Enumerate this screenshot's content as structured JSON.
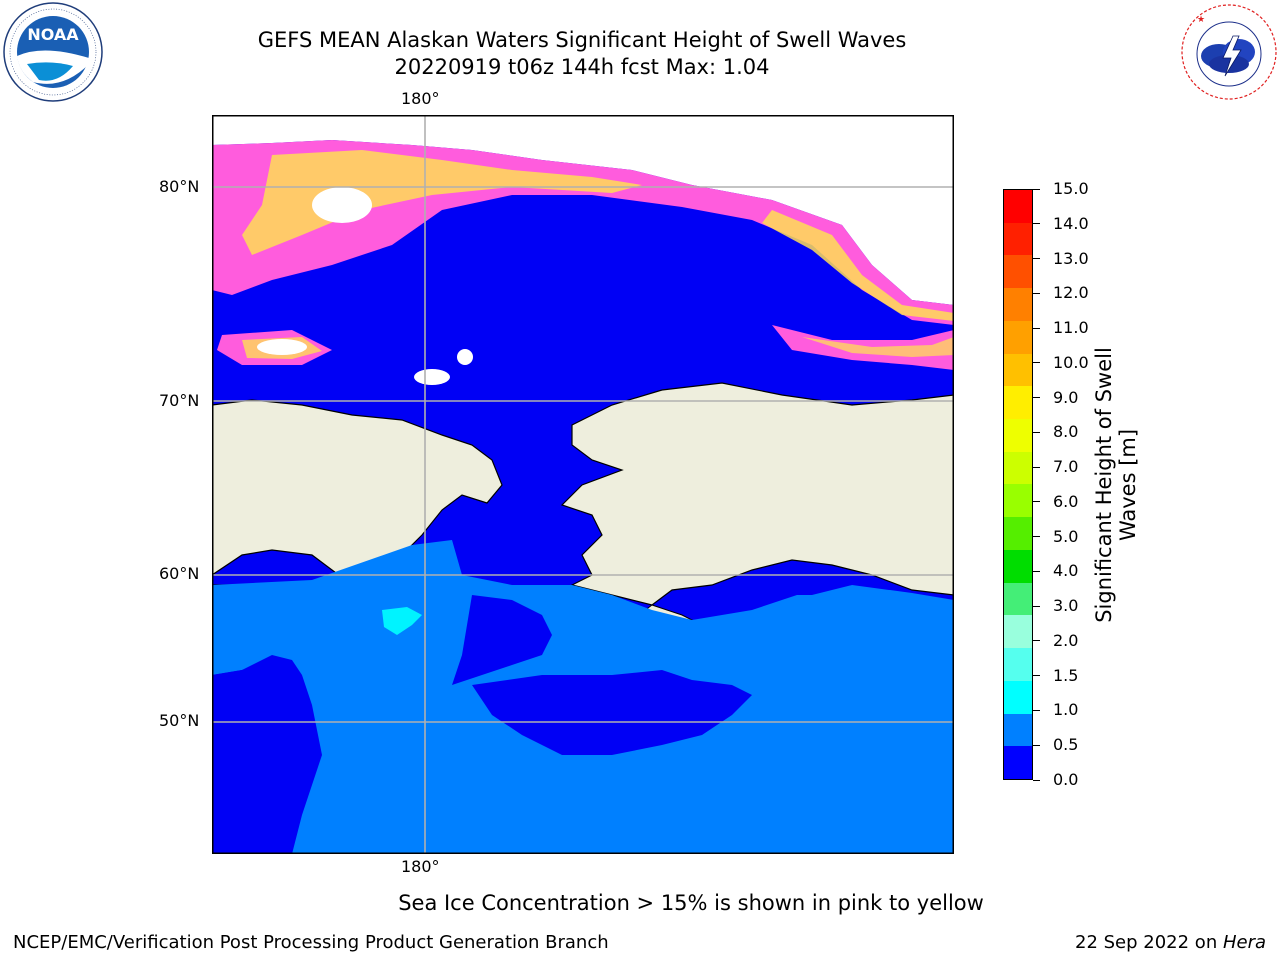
{
  "header": {
    "title_line1": "GEFS MEAN Alaskan Waters Significant Height of Swell Waves",
    "title_line2": "20220919 t06z 144h fcst   Max: 1.04"
  },
  "logos": {
    "noaa_text": "NOAA",
    "noaa_ring_text": "NATIONAL OCEANIC AND ATMOSPHERIC ADMINISTRATION · U.S. DEPARTMENT OF COMMERCE",
    "nws_ring_text": "NATIONAL WEATHER SERVICE"
  },
  "map": {
    "lon_label_top": "180°",
    "lon_label_bottom": "180°",
    "lat_labels": [
      "80°N",
      "70°N",
      "60°N",
      "50°N"
    ],
    "colors": {
      "deep_water": "#0000f5",
      "swell_0_5_1_0": "#0080ff",
      "land": "#eeeedd",
      "ice_pink": "#ff5cdd",
      "ice_yellow": "#ffdd55",
      "gridline": "#b0b0b0"
    }
  },
  "colorbar": {
    "label": "Significant Height of Swell Waves [m]",
    "label_line1": "Significant Height of Swell",
    "label_line2": "Waves [m]",
    "ticks": [
      "15.0",
      "14.0",
      "13.0",
      "12.0",
      "11.0",
      "10.0",
      "9.0",
      "8.0",
      "7.0",
      "6.0",
      "5.0",
      "4.0",
      "3.0",
      "2.0",
      "1.5",
      "1.0",
      "0.5",
      "0.0"
    ],
    "colors_top_to_bottom": [
      "#ff0000",
      "#ff2000",
      "#ff5000",
      "#ff8000",
      "#ffa000",
      "#ffc000",
      "#ffee00",
      "#eeff00",
      "#ccff00",
      "#99ff00",
      "#55ee00",
      "#00dd00",
      "#44ee77",
      "#99ffdd",
      "#55ffee",
      "#00ffff",
      "#0080ff",
      "#0000ff"
    ]
  },
  "caption": "Sea Ice Concentration > 15% is shown in pink to yellow",
  "footer": {
    "left": "NCEP/EMC/Verification Post Processing Product Generation Branch",
    "right_prefix": "22 Sep 2022 on ",
    "right_machine": "Hera"
  }
}
